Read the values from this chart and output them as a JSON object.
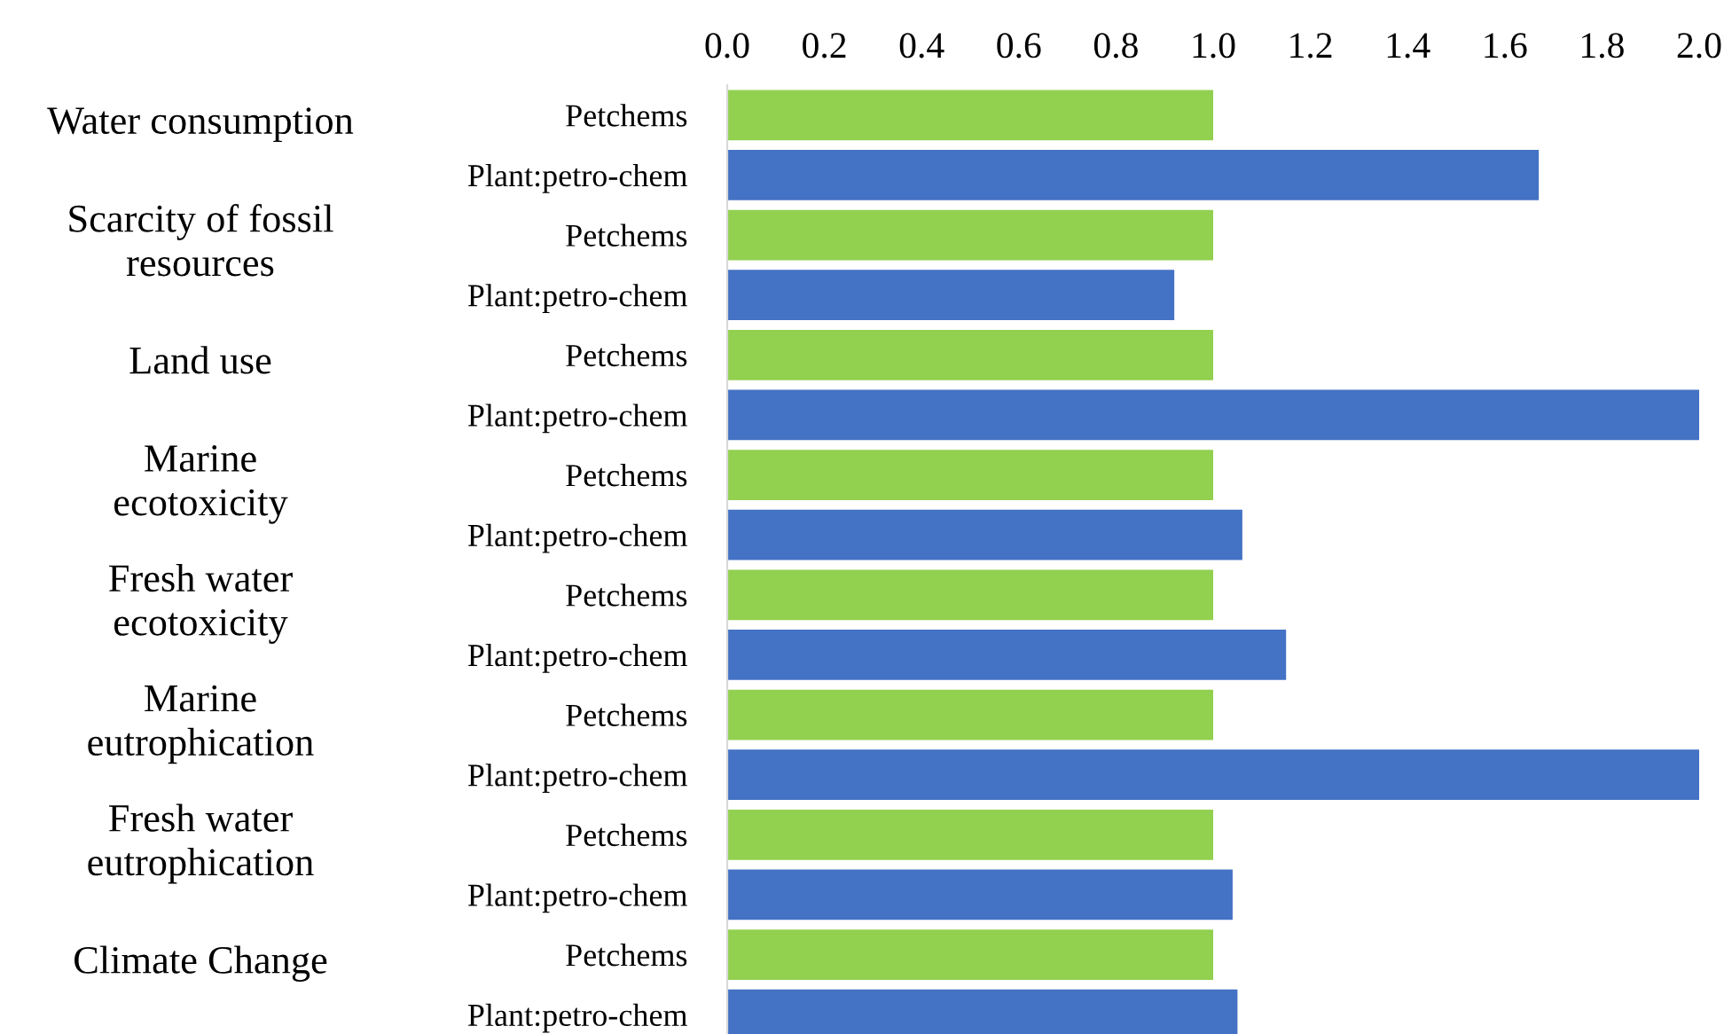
{
  "chart_data": {
    "type": "bar",
    "orientation": "horizontal",
    "categories": [
      "Petchems",
      "Plant:petro-chem",
      "Petchems",
      "Plant:petro-chem",
      "Petchems",
      "Plant:petro-chem",
      "Petchems",
      "Plant:petro-chem",
      "Petchems",
      "Plant:petro-chem",
      "Petchems",
      "Plant:petro-chem",
      "Petchems",
      "Plant:petro-chem",
      "Petchems",
      "Plant:petro-chem"
    ],
    "values": [
      1.0,
      1.67,
      1.0,
      0.92,
      1.0,
      2.0,
      1.0,
      1.06,
      1.0,
      1.15,
      1.0,
      2.0,
      1.0,
      1.04,
      1.0,
      1.05
    ],
    "colors": [
      "#92d050",
      "#4472c4",
      "#92d050",
      "#4472c4",
      "#92d050",
      "#4472c4",
      "#92d050",
      "#4472c4",
      "#92d050",
      "#4472c4",
      "#92d050",
      "#4472c4",
      "#92d050",
      "#4472c4",
      "#92d050",
      "#4472c4"
    ],
    "xlim": [
      0.0,
      2.0
    ],
    "xticks": [
      {
        "value": 0.0,
        "label": "0.0"
      },
      {
        "value": 0.2,
        "label": "0.2"
      },
      {
        "value": 0.4,
        "label": "0.4"
      },
      {
        "value": 0.6,
        "label": "0.6"
      },
      {
        "value": 0.8,
        "label": "0.8"
      },
      {
        "value": 1.0,
        "label": "1.0"
      },
      {
        "value": 1.2,
        "label": "1.2"
      },
      {
        "value": 1.4,
        "label": "1.4"
      },
      {
        "value": 1.6,
        "label": "1.6"
      },
      {
        "value": 1.8,
        "label": "1.8"
      },
      {
        "value": 2.0,
        "label": "2.0"
      }
    ],
    "annotations": [
      "Water consumption",
      "Scarcity of fossil\nresources",
      "Land use",
      "Marine\necotoxicity",
      "Fresh water\necotoxicity",
      "Marine\neutrophication",
      "Fresh water\neutrophication",
      "Climate Change"
    ],
    "grid": false,
    "legend": false
  }
}
